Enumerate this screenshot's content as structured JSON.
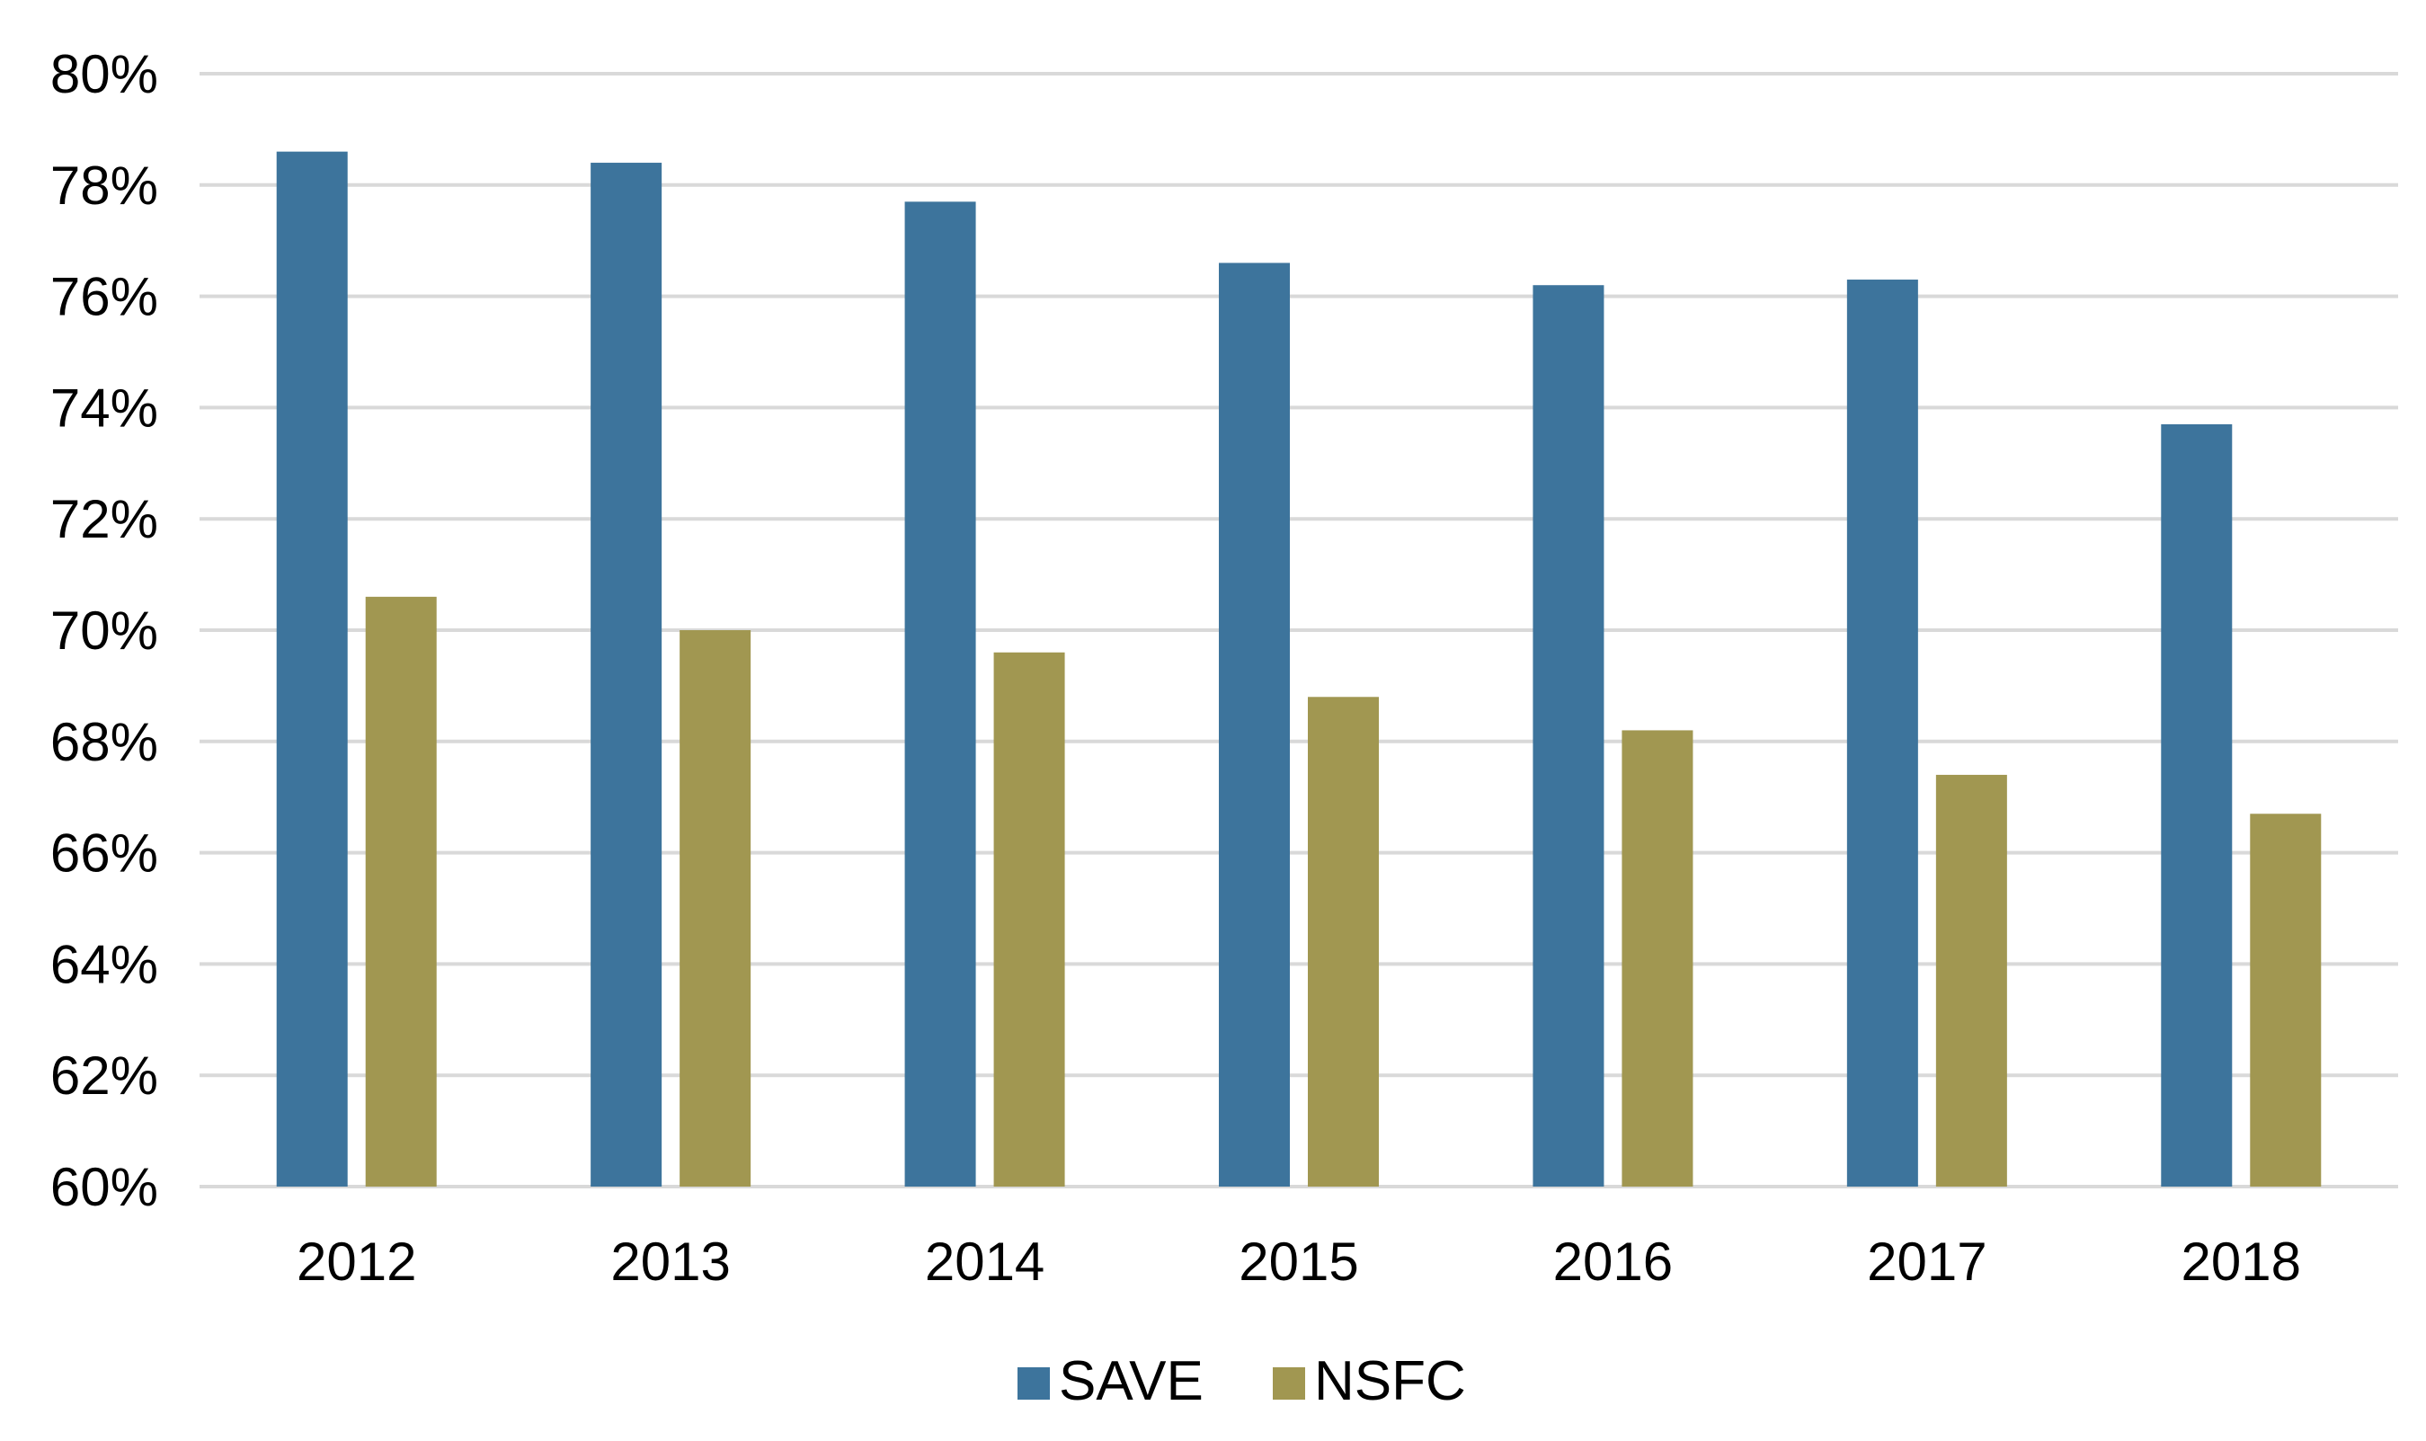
{
  "chart_data": {
    "type": "bar",
    "title": "",
    "xlabel": "",
    "ylabel": "",
    "categories": [
      "2012",
      "2013",
      "2014",
      "2015",
      "2016",
      "2017",
      "2018"
    ],
    "series": [
      {
        "name": "SAVE",
        "color": "#3d749c",
        "values": [
          78.6,
          78.4,
          77.7,
          76.6,
          76.2,
          76.3,
          73.7
        ]
      },
      {
        "name": "NSFC",
        "color": "#a19751",
        "values": [
          70.6,
          70.0,
          69.6,
          68.8,
          68.2,
          67.4,
          66.7
        ]
      }
    ],
    "ylim": [
      60,
      80
    ],
    "yticks": [
      "60%",
      "62%",
      "64%",
      "66%",
      "68%",
      "70%",
      "72%",
      "74%",
      "76%",
      "78%",
      "80%"
    ],
    "ytick_values": [
      60,
      62,
      64,
      66,
      68,
      70,
      72,
      74,
      76,
      78,
      80
    ],
    "grid": true,
    "legend_position": "bottom"
  }
}
